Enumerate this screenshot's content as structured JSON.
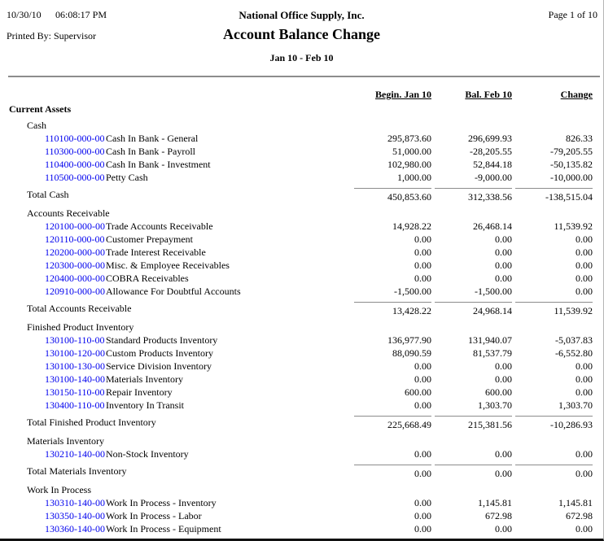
{
  "page": {
    "date": "10/30/10",
    "time": "06:08:17 PM",
    "printed_by": "Printed By: Supervisor",
    "company": "National Office Supply, Inc.",
    "title": "Account Balance Change",
    "period": "Jan 10 - Feb 10",
    "page_info": "Page 1 of 10"
  },
  "colors": {
    "account_link_blue": "#0000ee",
    "rule_gray": "#8c8c8c",
    "page_edge_black": "#111111"
  },
  "columns": [
    "Begin. Jan 10",
    "Bal. Feb 10",
    "Change"
  ],
  "report": {
    "root_heading": "Current Assets",
    "sections": [
      {
        "heading": "Cash",
        "rows": [
          {
            "account": "110100-000-00",
            "desc": "Cash In Bank - General",
            "begin": "295,873.60",
            "bal": "296,699.93",
            "change": "826.33"
          },
          {
            "account": "110300-000-00",
            "desc": "Cash In Bank - Payroll",
            "begin": "51,000.00",
            "bal": "-28,205.55",
            "change": "-79,205.55"
          },
          {
            "account": "110400-000-00",
            "desc": "Cash In Bank - Investment",
            "begin": "102,980.00",
            "bal": "52,844.18",
            "change": "-50,135.82"
          },
          {
            "account": "110500-000-00",
            "desc": "Petty Cash",
            "begin": "1,000.00",
            "bal": "-9,000.00",
            "change": "-10,000.00"
          }
        ],
        "total": {
          "label": "Total Cash",
          "begin": "450,853.60",
          "bal": "312,338.56",
          "change": "-138,515.04"
        }
      },
      {
        "heading": "Accounts Receivable",
        "rows": [
          {
            "account": "120100-000-00",
            "desc": "Trade Accounts Receivable",
            "begin": "14,928.22",
            "bal": "26,468.14",
            "change": "11,539.92"
          },
          {
            "account": "120110-000-00",
            "desc": "Customer Prepayment",
            "begin": "0.00",
            "bal": "0.00",
            "change": "0.00"
          },
          {
            "account": "120200-000-00",
            "desc": "Trade Interest Receivable",
            "begin": "0.00",
            "bal": "0.00",
            "change": "0.00"
          },
          {
            "account": "120300-000-00",
            "desc": "Misc. & Employee Receivables",
            "begin": "0.00",
            "bal": "0.00",
            "change": "0.00"
          },
          {
            "account": "120400-000-00",
            "desc": "COBRA Receivables",
            "begin": "0.00",
            "bal": "0.00",
            "change": "0.00"
          },
          {
            "account": "120910-000-00",
            "desc": "Allowance For Doubtful Accounts",
            "begin": "-1,500.00",
            "bal": "-1,500.00",
            "change": "0.00"
          }
        ],
        "total": {
          "label": "Total Accounts Receivable",
          "begin": "13,428.22",
          "bal": "24,968.14",
          "change": "11,539.92"
        }
      },
      {
        "heading": "Finished Product Inventory",
        "rows": [
          {
            "account": "130100-110-00",
            "desc": "Standard Products Inventory",
            "begin": "136,977.90",
            "bal": "131,940.07",
            "change": "-5,037.83"
          },
          {
            "account": "130100-120-00",
            "desc": "Custom Products Inventory",
            "begin": "88,090.59",
            "bal": "81,537.79",
            "change": "-6,552.80"
          },
          {
            "account": "130100-130-00",
            "desc": "Service Division Inventory",
            "begin": "0.00",
            "bal": "0.00",
            "change": "0.00"
          },
          {
            "account": "130100-140-00",
            "desc": "Materials Inventory",
            "begin": "0.00",
            "bal": "0.00",
            "change": "0.00"
          },
          {
            "account": "130150-110-00",
            "desc": "Repair Inventory",
            "begin": "600.00",
            "bal": "600.00",
            "change": "0.00"
          },
          {
            "account": "130400-110-00",
            "desc": "Inventory In Transit",
            "begin": "0.00",
            "bal": "1,303.70",
            "change": "1,303.70"
          }
        ],
        "total": {
          "label": "Total Finished Product Inventory",
          "begin": "225,668.49",
          "bal": "215,381.56",
          "change": "-10,286.93"
        }
      },
      {
        "heading": "Materials Inventory",
        "rows": [
          {
            "account": "130210-140-00",
            "desc": "Non-Stock Inventory",
            "begin": "0.00",
            "bal": "0.00",
            "change": "0.00"
          }
        ],
        "total": {
          "label": "Total Materials Inventory",
          "begin": "0.00",
          "bal": "0.00",
          "change": "0.00"
        }
      },
      {
        "heading": "Work In Process",
        "rows": [
          {
            "account": "130310-140-00",
            "desc": "Work In Process - Inventory",
            "begin": "0.00",
            "bal": "1,145.81",
            "change": "1,145.81"
          },
          {
            "account": "130350-140-00",
            "desc": "Work In Process - Labor",
            "begin": "0.00",
            "bal": "672.98",
            "change": "672.98"
          },
          {
            "account": "130360-140-00",
            "desc": "Work In Process - Equipment",
            "begin": "0.00",
            "bal": "0.00",
            "change": "0.00"
          }
        ],
        "total": null
      }
    ]
  }
}
